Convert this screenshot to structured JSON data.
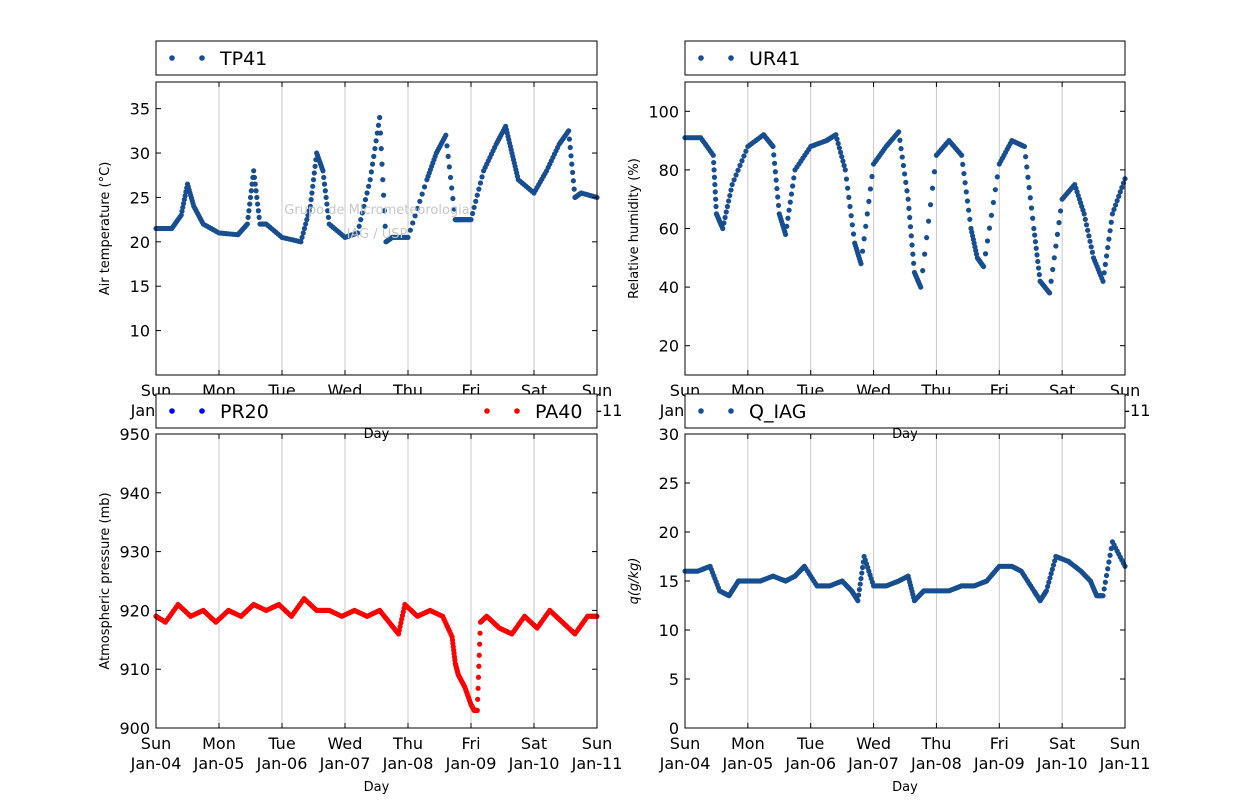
{
  "figure": {
    "watermark": {
      "line1": "Grupo de Micrometeorologia",
      "line2": "IAG / USP"
    },
    "day_ticks": [
      {
        "day": "Sun",
        "date": "Jan-04"
      },
      {
        "day": "Mon",
        "date": "Jan-05"
      },
      {
        "day": "Tue",
        "date": "Jan-06"
      },
      {
        "day": "Wed",
        "date": "Jan-07"
      },
      {
        "day": "Thu",
        "date": "Jan-08"
      },
      {
        "day": "Fri",
        "date": "Jan-09"
      },
      {
        "day": "Sat",
        "date": "Jan-10"
      },
      {
        "day": "Sun",
        "date": "Jan-11"
      }
    ]
  },
  "chart_data": [
    {
      "type": "scatter",
      "xlabel": "Day",
      "ylabel": "Air temperature (°C)",
      "ylim": [
        5,
        38
      ],
      "yticks": [
        10,
        15,
        20,
        25,
        30,
        35
      ],
      "xlim": [
        0,
        7
      ],
      "grid": "vertical",
      "legend_placement": "top",
      "series": [
        {
          "name": "TP41",
          "color": "#184e8f",
          "x": [
            0,
            0.25,
            0.4,
            0.5,
            0.6,
            0.75,
            1,
            1.3,
            1.45,
            1.55,
            1.65,
            1.75,
            2,
            2.3,
            2.45,
            2.55,
            2.65,
            2.75,
            3,
            3.2,
            3.4,
            3.55,
            3.65,
            3.75,
            4,
            4.3,
            4.45,
            4.6,
            4.75,
            4.85,
            5.0,
            5.2,
            5.4,
            5.55,
            5.65,
            5.75,
            6,
            6.2,
            6.4,
            6.55,
            6.65,
            6.75,
            7
          ],
          "y": [
            21.5,
            21.5,
            23,
            26.5,
            24,
            22,
            21,
            20.8,
            22,
            28,
            22,
            22,
            20.5,
            20,
            24,
            30,
            28,
            22,
            20.5,
            21,
            27,
            34,
            20,
            20.5,
            20.5,
            27,
            30,
            32,
            22.5,
            22.5,
            22.5,
            28,
            31,
            33,
            30,
            27,
            25.5,
            28,
            31,
            32.5,
            25,
            25.5,
            25
          ]
        }
      ]
    },
    {
      "type": "scatter",
      "xlabel": "Day",
      "ylabel": "Relative humidity (%)",
      "ylim": [
        10,
        110
      ],
      "yticks": [
        20,
        40,
        60,
        80,
        100
      ],
      "xlim": [
        0,
        7
      ],
      "grid": "vertical",
      "legend_placement": "top",
      "series": [
        {
          "name": "UR41",
          "color": "#184e8f",
          "x": [
            0,
            0.25,
            0.45,
            0.5,
            0.6,
            0.75,
            1,
            1.25,
            1.4,
            1.5,
            1.6,
            1.75,
            2,
            2.25,
            2.4,
            2.55,
            2.7,
            2.8,
            3.0,
            3.2,
            3.4,
            3.55,
            3.65,
            3.75,
            4.0,
            4.2,
            4.4,
            4.55,
            4.65,
            4.75,
            5.0,
            5.2,
            5.4,
            5.55,
            5.65,
            5.8,
            6,
            6.2,
            6.35,
            6.5,
            6.65,
            6.8,
            7
          ],
          "y": [
            91,
            91,
            85,
            65,
            60,
            75,
            88,
            92,
            88,
            65,
            58,
            80,
            88,
            90,
            92,
            80,
            55,
            48,
            82,
            88,
            93,
            70,
            45,
            40,
            85,
            90,
            85,
            60,
            50,
            47,
            82,
            90,
            88,
            60,
            42,
            38,
            70,
            75,
            65,
            50,
            42,
            65,
            77
          ]
        }
      ]
    },
    {
      "type": "scatter",
      "xlabel": "Day",
      "ylabel": "Atmospheric pressure (mb)",
      "ylim": [
        900,
        950
      ],
      "yticks": [
        900,
        910,
        920,
        930,
        940,
        950
      ],
      "xlim": [
        0,
        7
      ],
      "grid": "vertical",
      "legend_placement": "top",
      "series": [
        {
          "name": "PR20",
          "color": "#0000ff",
          "x": [],
          "y": []
        },
        {
          "name": "PA40",
          "color": "#ff0000",
          "x": [
            0,
            0.15,
            0.35,
            0.55,
            0.75,
            0.95,
            1.15,
            1.35,
            1.55,
            1.75,
            1.95,
            2.15,
            2.35,
            2.55,
            2.75,
            2.95,
            3.15,
            3.35,
            3.55,
            3.7,
            3.85,
            3.95,
            4.15,
            4.35,
            4.55,
            4.7,
            4.75,
            4.8,
            4.9,
            5.0,
            5.05,
            5.1,
            5.15,
            5.25,
            5.45,
            5.65,
            5.85,
            6.05,
            6.25,
            6.45,
            6.65,
            6.85,
            7
          ],
          "y": [
            919,
            918,
            921,
            919,
            920,
            918,
            920,
            919,
            921,
            920,
            921,
            919,
            922,
            920,
            920,
            919,
            920,
            919,
            920,
            918,
            916,
            921,
            919,
            920,
            919,
            915.5,
            911,
            909,
            907,
            904,
            903,
            903,
            918,
            919,
            917,
            916,
            919,
            917,
            920,
            918,
            916,
            919,
            919
          ]
        }
      ]
    },
    {
      "type": "scatter",
      "xlabel": "Day",
      "ylabel": "q(g/kg)",
      "ylim": [
        0,
        30
      ],
      "yticks": [
        0,
        5,
        10,
        15,
        20,
        25,
        30
      ],
      "xlim": [
        0,
        7
      ],
      "grid": "vertical",
      "legend_placement": "top",
      "series": [
        {
          "name": "Q_IAG",
          "color": "#184e8f",
          "x": [
            0,
            0.2,
            0.4,
            0.55,
            0.7,
            0.85,
            1,
            1.2,
            1.4,
            1.6,
            1.75,
            1.9,
            2.1,
            2.3,
            2.5,
            2.65,
            2.75,
            2.85,
            3.0,
            3.2,
            3.4,
            3.55,
            3.65,
            3.8,
            4.0,
            4.2,
            4.4,
            4.6,
            4.8,
            5.0,
            5.2,
            5.35,
            5.55,
            5.65,
            5.75,
            5.9,
            6.1,
            6.3,
            6.45,
            6.55,
            6.65,
            6.8,
            7
          ],
          "y": [
            16,
            16,
            16.5,
            14,
            13.5,
            15,
            15,
            15,
            15.5,
            15,
            15.5,
            16.5,
            14.5,
            14.5,
            15,
            14,
            13,
            17.5,
            14.5,
            14.5,
            15,
            15.5,
            13,
            14,
            14,
            14,
            14.5,
            14.5,
            15,
            16.5,
            16.5,
            16,
            14,
            13,
            14,
            17.5,
            17,
            16,
            15,
            13.5,
            13.5,
            19,
            16.5
          ]
        }
      ]
    }
  ]
}
